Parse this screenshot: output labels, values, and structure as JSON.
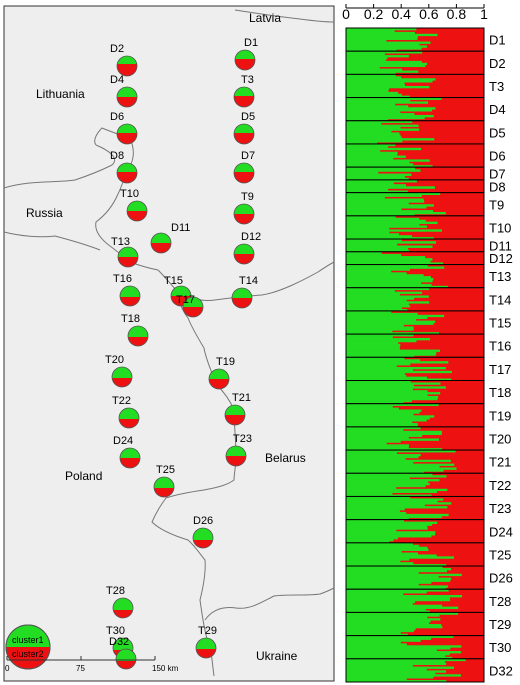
{
  "colors": {
    "cluster1": "#22dd22",
    "cluster2": "#ee1111",
    "land": "#eeeeee",
    "border": "#777777"
  },
  "countries": [
    {
      "name": "Latvia",
      "key": "latvia"
    },
    {
      "name": "Lithuania",
      "key": "lithuania"
    },
    {
      "name": "Russia",
      "key": "russia"
    },
    {
      "name": "Poland",
      "key": "poland"
    },
    {
      "name": "Belarus",
      "key": "belarus"
    },
    {
      "name": "Ukraine",
      "key": "ukraine"
    }
  ],
  "legend": {
    "cluster1": "cluster1",
    "cluster2": "cluster2"
  },
  "scale_bar": {
    "ticks": [
      "0",
      "75",
      "150 km"
    ]
  },
  "sites": [
    {
      "name": "D1",
      "cluster1": 0.45
    },
    {
      "name": "D2",
      "cluster1": 0.4
    },
    {
      "name": "T3",
      "cluster1": 0.45
    },
    {
      "name": "D4",
      "cluster1": 0.5
    },
    {
      "name": "D5",
      "cluster1": 0.45
    },
    {
      "name": "D6",
      "cluster1": 0.45
    },
    {
      "name": "D7",
      "cluster1": 0.45
    },
    {
      "name": "D8",
      "cluster1": 0.45
    },
    {
      "name": "T9",
      "cluster1": 0.5
    },
    {
      "name": "T10",
      "cluster1": 0.5
    },
    {
      "name": "D11",
      "cluster1": 0.5
    },
    {
      "name": "D12",
      "cluster1": 0.5
    },
    {
      "name": "T13",
      "cluster1": 0.5
    },
    {
      "name": "T14",
      "cluster1": 0.5
    },
    {
      "name": "T15",
      "cluster1": 0.5
    },
    {
      "name": "T16",
      "cluster1": 0.55
    },
    {
      "name": "T17",
      "cluster1": 0.5
    },
    {
      "name": "T18",
      "cluster1": 0.55
    },
    {
      "name": "T19",
      "cluster1": 0.5
    },
    {
      "name": "T20",
      "cluster1": 0.55
    },
    {
      "name": "T21",
      "cluster1": 0.5
    },
    {
      "name": "T22",
      "cluster1": 0.55
    },
    {
      "name": "T23",
      "cluster1": 0.5
    },
    {
      "name": "D24",
      "cluster1": 0.5
    },
    {
      "name": "T25",
      "cluster1": 0.55
    },
    {
      "name": "D26",
      "cluster1": 0.6
    },
    {
      "name": "T28",
      "cluster1": 0.6
    },
    {
      "name": "T29",
      "cluster1": 0.55
    },
    {
      "name": "T30",
      "cluster1": 0.6
    },
    {
      "name": "D32",
      "cluster1": 0.6
    }
  ],
  "chart_data": {
    "type": "bar",
    "orientation": "horizontal-stacked",
    "x_ticks": [
      "0",
      "0.2",
      "0.4",
      "0.6",
      "0.8",
      "1"
    ],
    "xlim": [
      0,
      1
    ],
    "series": [
      {
        "name": "cluster1"
      },
      {
        "name": "cluster2"
      }
    ],
    "groups": [
      {
        "name": "D1",
        "cluster1": 0.44
      },
      {
        "name": "D2",
        "cluster1": 0.42
      },
      {
        "name": "T3",
        "cluster1": 0.46
      },
      {
        "name": "D4",
        "cluster1": 0.48
      },
      {
        "name": "D5",
        "cluster1": 0.44
      },
      {
        "name": "D6",
        "cluster1": 0.47
      },
      {
        "name": "D7",
        "cluster1": 0.45
      },
      {
        "name": "D8",
        "cluster1": 0.44
      },
      {
        "name": "T9",
        "cluster1": 0.5
      },
      {
        "name": "T10",
        "cluster1": 0.5
      },
      {
        "name": "D11",
        "cluster1": 0.49
      },
      {
        "name": "D12",
        "cluster1": 0.48
      },
      {
        "name": "T13",
        "cluster1": 0.55
      },
      {
        "name": "T14",
        "cluster1": 0.52
      },
      {
        "name": "T15",
        "cluster1": 0.5
      },
      {
        "name": "T16",
        "cluster1": 0.56
      },
      {
        "name": "T17",
        "cluster1": 0.55
      },
      {
        "name": "T18",
        "cluster1": 0.58
      },
      {
        "name": "T19",
        "cluster1": 0.55
      },
      {
        "name": "T20",
        "cluster1": 0.5
      },
      {
        "name": "T21",
        "cluster1": 0.58
      },
      {
        "name": "T22",
        "cluster1": 0.55
      },
      {
        "name": "T23",
        "cluster1": 0.56
      },
      {
        "name": "D24",
        "cluster1": 0.5
      },
      {
        "name": "T25",
        "cluster1": 0.6
      },
      {
        "name": "D26",
        "cluster1": 0.7
      },
      {
        "name": "T28",
        "cluster1": 0.62
      },
      {
        "name": "T29",
        "cluster1": 0.6
      },
      {
        "name": "T30",
        "cluster1": 0.62
      },
      {
        "name": "D32",
        "cluster1": 0.65
      }
    ]
  }
}
